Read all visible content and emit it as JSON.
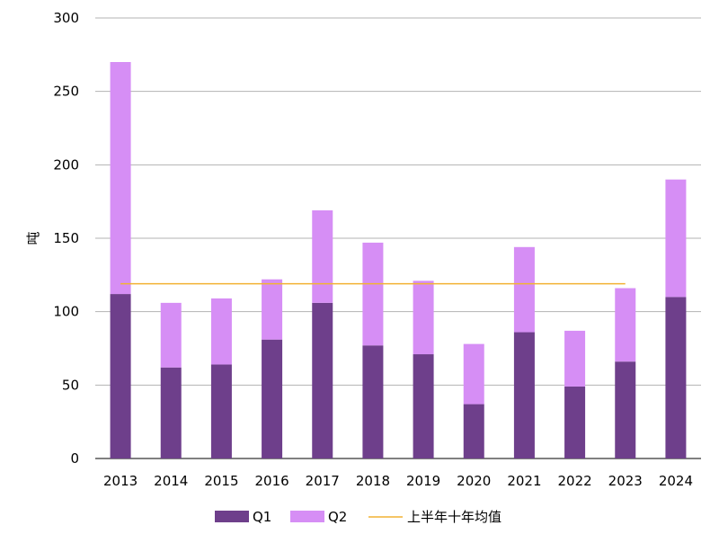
{
  "chart_data": {
    "type": "bar",
    "stacked": true,
    "title": "",
    "xlabel": "",
    "ylabel": "吨",
    "categories": [
      "2013",
      "2014",
      "2015",
      "2016",
      "2017",
      "2018",
      "2019",
      "2020",
      "2021",
      "2022",
      "2023",
      "2024"
    ],
    "series": [
      {
        "name": "Q1",
        "color": "#6e3f8b",
        "values": [
          112,
          62,
          64,
          81,
          106,
          77,
          71,
          37,
          86,
          49,
          66,
          110
        ]
      },
      {
        "name": "Q2",
        "color": "#d68ef5",
        "values": [
          158,
          44,
          45,
          41,
          63,
          70,
          50,
          41,
          58,
          38,
          50,
          80
        ]
      }
    ],
    "reference_line": {
      "name": "上半年十年均值",
      "color": "#f2b233",
      "value": 119,
      "from": "2013",
      "to": "2023"
    },
    "ylim": [
      0,
      300
    ],
    "yticks": [
      0,
      50,
      100,
      150,
      200,
      250,
      300
    ],
    "grid": true,
    "legend_position": "bottom"
  }
}
